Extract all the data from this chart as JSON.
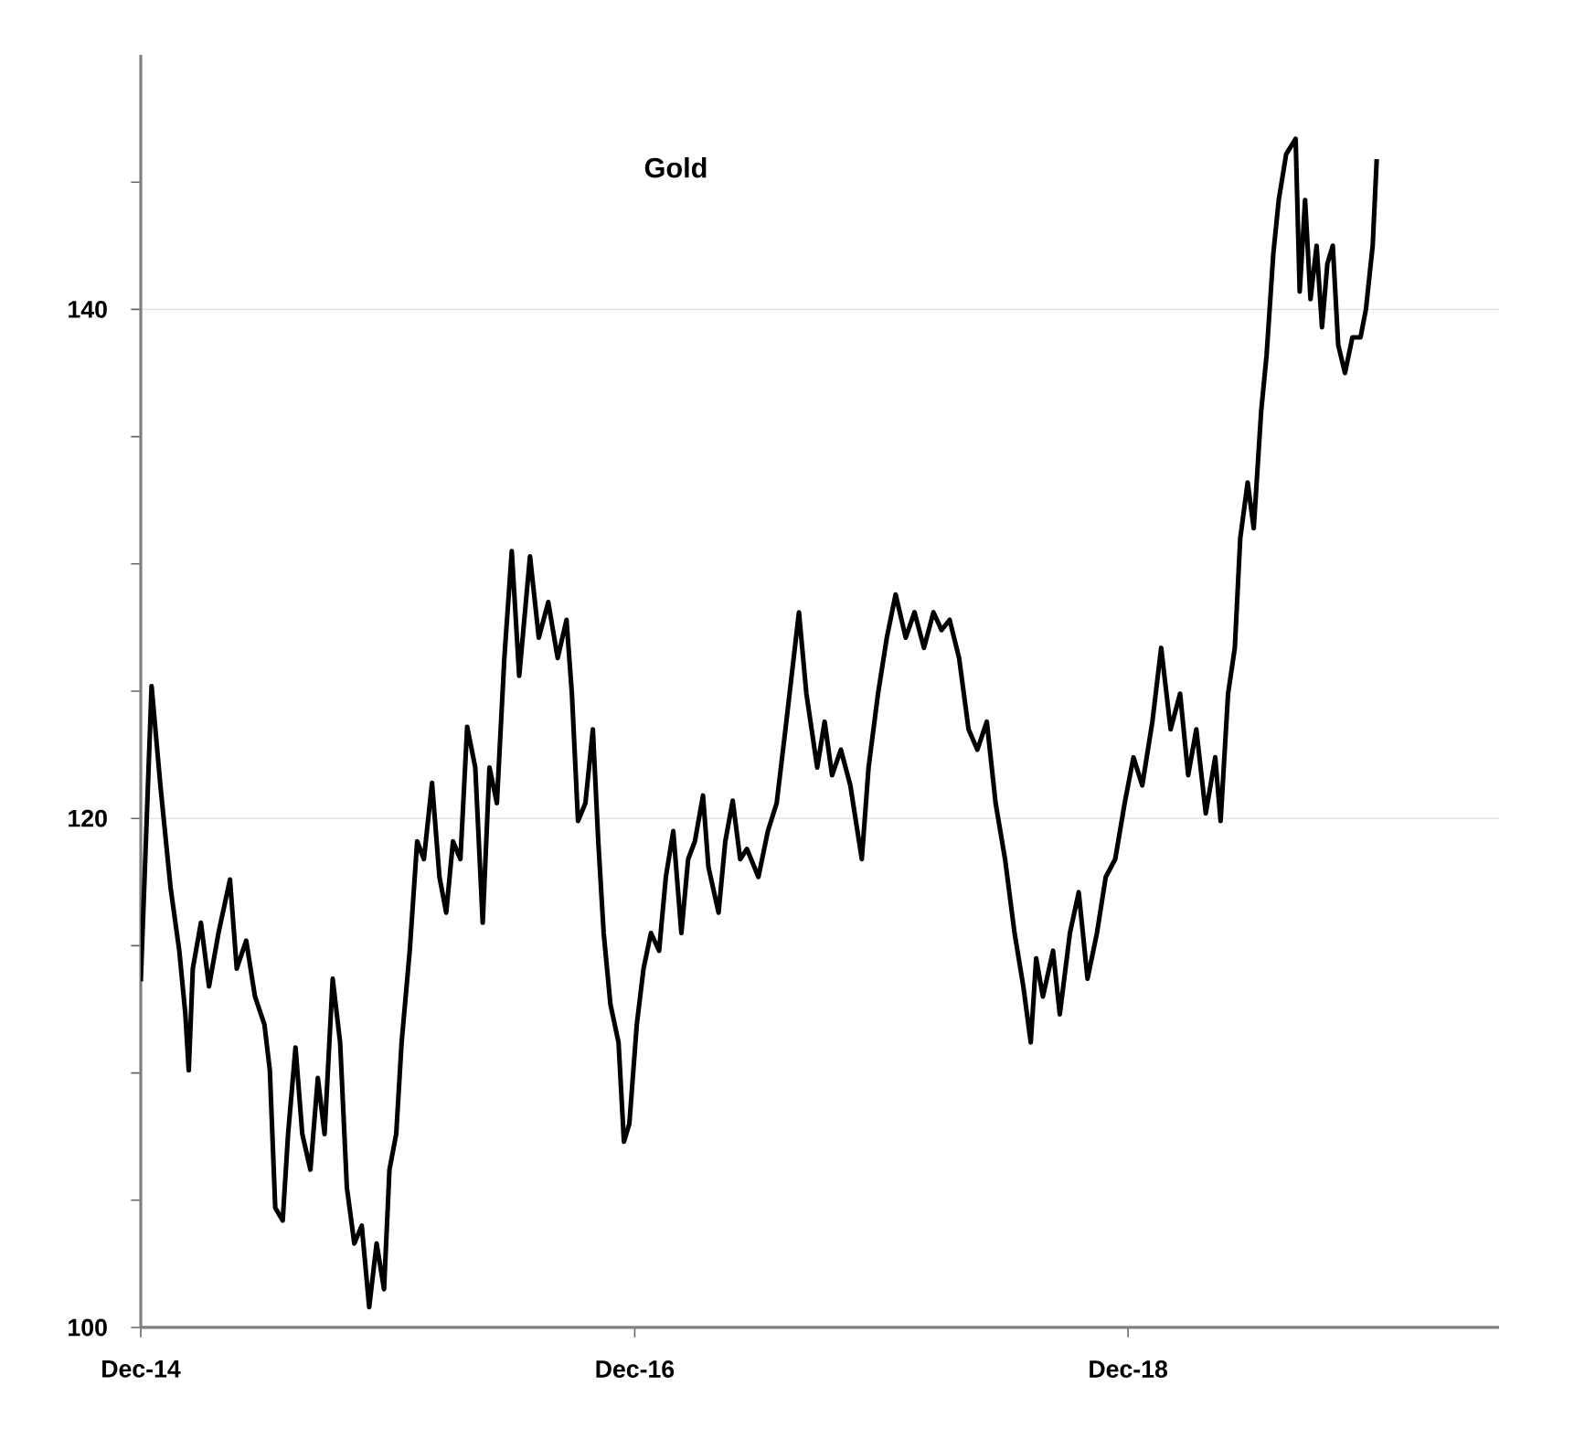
{
  "chart_data": {
    "type": "line",
    "title": "Gold",
    "xlim": [
      "2014-12-01",
      "2020-06-02"
    ],
    "xticks": [
      {
        "value": "2014-12-01",
        "label": "Dec-14"
      },
      {
        "value": "2016-12-01",
        "label": "Dec-16"
      },
      {
        "value": "2018-12-01",
        "label": "Dec-18"
      }
    ],
    "ylim": [
      100,
      150
    ],
    "yticks": [
      100,
      {
        "value": 105,
        "label": null
      },
      {
        "value": 110,
        "label": null
      },
      {
        "value": 115,
        "label": null
      },
      120,
      {
        "value": 125,
        "label": null
      },
      {
        "value": 130,
        "label": null
      },
      {
        "value": 135,
        "label": null
      },
      140,
      {
        "value": 145,
        "label": null
      }
    ],
    "grid": "y",
    "marker": "none",
    "line_style": "solid",
    "x": [
      "2014-12-01",
      "2014-12-17",
      "2014-12-30",
      "2015-01-14",
      "2015-01-27",
      "2015-02-05",
      "2015-02-10",
      "2015-02-16",
      "2015-02-28",
      "2015-03-12",
      "2015-03-26",
      "2015-04-12",
      "2015-04-22",
      "2015-05-06",
      "2015-05-19",
      "2015-06-02",
      "2015-06-10",
      "2015-06-18",
      "2015-06-29",
      "2015-07-07",
      "2015-07-18",
      "2015-07-28",
      "2015-08-09",
      "2015-08-20",
      "2015-08-30",
      "2015-09-11",
      "2015-09-22",
      "2015-10-02",
      "2015-10-13",
      "2015-10-24",
      "2015-11-04",
      "2015-11-15",
      "2015-11-26",
      "2015-12-04",
      "2015-12-14",
      "2015-12-22",
      "2016-01-03",
      "2016-01-14",
      "2016-01-24",
      "2016-02-05",
      "2016-02-16",
      "2016-02-26",
      "2016-03-07",
      "2016-03-18",
      "2016-03-28",
      "2016-04-09",
      "2016-04-20",
      "2016-04-30",
      "2016-05-11",
      "2016-05-22",
      "2016-06-02",
      "2016-06-13",
      "2016-06-29",
      "2016-07-12",
      "2016-07-26",
      "2016-08-09",
      "2016-08-22",
      "2016-08-30",
      "2016-09-08",
      "2016-09-19",
      "2016-09-30",
      "2016-10-08",
      "2016-10-16",
      "2016-10-26",
      "2016-11-07",
      "2016-11-15",
      "2016-11-23",
      "2016-12-04",
      "2016-12-14",
      "2016-12-25",
      "2017-01-06",
      "2017-01-16",
      "2017-01-27",
      "2017-02-08",
      "2017-02-18",
      "2017-02-28",
      "2017-03-12",
      "2017-03-20",
      "2017-04-04",
      "2017-04-14",
      "2017-04-25",
      "2017-05-06",
      "2017-05-16",
      "2017-06-02",
      "2017-06-16",
      "2017-06-29",
      "2017-07-12",
      "2017-08-01",
      "2017-08-12",
      "2017-08-28",
      "2017-09-08",
      "2017-09-19",
      "2017-10-02",
      "2017-10-16",
      "2017-11-02",
      "2017-11-12",
      "2017-11-26",
      "2017-12-09",
      "2017-12-22",
      "2018-01-06",
      "2018-01-19",
      "2018-02-02",
      "2018-02-16",
      "2018-02-28",
      "2018-03-12",
      "2018-03-26",
      "2018-04-09",
      "2018-04-22",
      "2018-05-06",
      "2018-05-19",
      "2018-06-02",
      "2018-06-16",
      "2018-06-29",
      "2018-07-10",
      "2018-07-18",
      "2018-07-28",
      "2018-08-12",
      "2018-08-22",
      "2018-09-06",
      "2018-09-19",
      "2018-10-02",
      "2018-10-16",
      "2018-10-29",
      "2018-11-12",
      "2018-11-26",
      "2018-12-09",
      "2018-12-22",
      "2019-01-06",
      "2019-01-19",
      "2019-02-02",
      "2019-02-16",
      "2019-02-28",
      "2019-03-12",
      "2019-03-26",
      "2019-04-09",
      "2019-04-17",
      "2019-04-28",
      "2019-05-08",
      "2019-05-16",
      "2019-05-27",
      "2019-06-05",
      "2019-06-16",
      "2019-06-24",
      "2019-07-04",
      "2019-07-12",
      "2019-07-23",
      "2019-08-06",
      "2019-08-12",
      "2019-08-20",
      "2019-08-28",
      "2019-09-06",
      "2019-09-14",
      "2019-09-22",
      "2019-09-30",
      "2019-10-08",
      "2019-10-18",
      "2019-10-29",
      "2019-11-10",
      "2019-11-18",
      "2019-11-28",
      "2019-12-04"
    ],
    "series": [
      {
        "color": "#000000",
        "values": [
          113.6,
          125.2,
          121.3,
          117.3,
          114.8,
          112.3,
          110.1,
          114.1,
          115.9,
          113.4,
          115.5,
          117.6,
          114.1,
          115.2,
          113.0,
          111.9,
          110.1,
          104.7,
          104.2,
          107.6,
          111.0,
          107.6,
          106.2,
          109.8,
          107.6,
          113.7,
          111.2,
          105.5,
          103.3,
          104.0,
          100.8,
          103.3,
          101.5,
          106.2,
          107.6,
          111.2,
          114.8,
          119.1,
          118.4,
          121.4,
          117.7,
          116.3,
          119.1,
          118.4,
          123.6,
          122.0,
          115.9,
          122.0,
          120.6,
          126.3,
          130.5,
          125.6,
          130.3,
          127.1,
          128.5,
          126.3,
          127.8,
          124.9,
          119.9,
          120.6,
          123.5,
          119.1,
          115.5,
          112.7,
          111.2,
          107.3,
          108.0,
          111.9,
          114.1,
          115.5,
          114.8,
          117.7,
          119.5,
          115.5,
          118.4,
          119.1,
          120.9,
          118.1,
          116.3,
          119.1,
          120.7,
          118.4,
          118.8,
          117.7,
          119.5,
          120.6,
          123.5,
          128.1,
          124.9,
          122.0,
          123.8,
          121.7,
          122.7,
          121.3,
          118.4,
          122.0,
          124.9,
          127.1,
          128.8,
          127.1,
          128.1,
          126.7,
          128.1,
          127.4,
          127.8,
          126.3,
          123.5,
          122.7,
          123.8,
          120.6,
          118.4,
          115.5,
          113.4,
          111.2,
          114.5,
          113.0,
          114.8,
          112.3,
          115.5,
          117.1,
          113.7,
          115.5,
          117.7,
          118.4,
          120.6,
          122.4,
          121.3,
          123.8,
          126.7,
          123.5,
          124.9,
          121.7,
          123.5,
          120.2,
          122.4,
          119.9,
          124.9,
          126.7,
          131.0,
          133.2,
          131.4,
          136.0,
          138.2,
          142.2,
          144.3,
          146.1,
          146.7,
          140.7,
          144.3,
          140.4,
          142.5,
          139.3,
          141.8,
          142.5,
          138.6,
          137.5,
          138.9,
          138.9,
          140.0,
          142.5,
          145.9
        ]
      }
    ]
  }
}
